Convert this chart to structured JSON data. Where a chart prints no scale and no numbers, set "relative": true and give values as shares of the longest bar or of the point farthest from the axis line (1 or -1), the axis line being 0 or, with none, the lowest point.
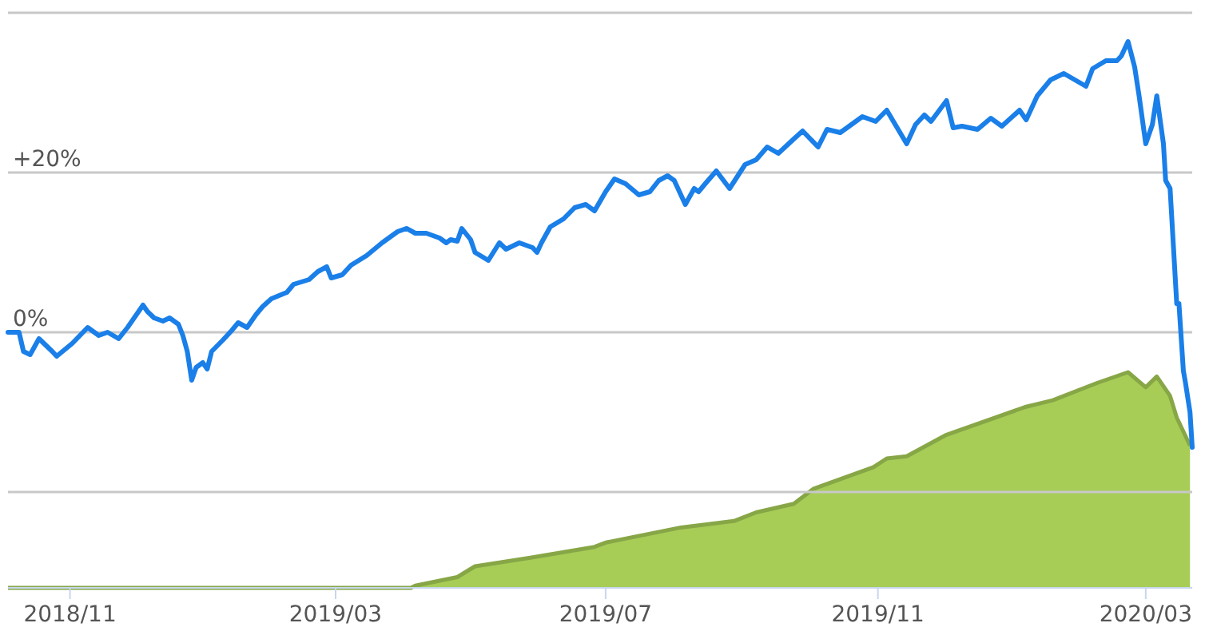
{
  "chart_data": [
    {
      "type": "line",
      "xlim": [
        "2018-10-04",
        "2020-03-22"
      ],
      "xticks": [
        {
          "value": "2018-11-01",
          "label": "2018/11"
        },
        {
          "value": "2019-03-01",
          "label": "2019/03"
        },
        {
          "value": "2019-07-01",
          "label": "2019/07"
        },
        {
          "value": "2019-11-01",
          "label": "2019/11"
        },
        {
          "value": "2020-03-01",
          "label": "2020/03"
        }
      ],
      "ylim": [
        -32,
        40
      ],
      "yticks": [
        {
          "value": -20,
          "label": null
        },
        {
          "value": 0,
          "label": "0%"
        },
        {
          "value": 20,
          "label": "+20%"
        },
        {
          "value": 40,
          "label": null
        }
      ],
      "grid": "y",
      "series": [
        {
          "color": "#1a7fe8",
          "x": [
            "2018-10-04",
            "2018-10-09",
            "2018-10-11",
            "2018-10-14",
            "2018-10-18",
            "2018-10-24",
            "2018-10-26",
            "2018-11-02",
            "2018-11-09",
            "2018-11-14",
            "2018-11-18",
            "2018-11-23",
            "2018-11-27",
            "2018-12-04",
            "2018-12-06",
            "2018-12-09",
            "2018-12-13",
            "2018-12-16",
            "2018-12-20",
            "2018-12-22",
            "2018-12-24",
            "2018-12-26",
            "2018-12-28",
            "2018-12-31",
            "2019-01-02",
            "2019-01-04",
            "2019-01-09",
            "2019-01-13",
            "2019-01-16",
            "2019-01-20",
            "2019-01-24",
            "2019-01-27",
            "2019-01-31",
            "2019-02-07",
            "2019-02-10",
            "2019-02-17",
            "2019-02-21",
            "2019-02-25",
            "2019-02-27",
            "2019-03-04",
            "2019-03-08",
            "2019-03-15",
            "2019-03-22",
            "2019-03-29",
            "2019-04-02",
            "2019-04-06",
            "2019-04-11",
            "2019-04-17",
            "2019-04-20",
            "2019-04-22",
            "2019-04-25",
            "2019-04-27",
            "2019-05-01",
            "2019-05-03",
            "2019-05-09",
            "2019-05-14",
            "2019-05-17",
            "2019-05-23",
            "2019-05-29",
            "2019-05-31",
            "2019-06-02",
            "2019-06-06",
            "2019-06-12",
            "2019-06-17",
            "2019-06-22",
            "2019-06-26",
            "2019-07-01",
            "2019-07-05",
            "2019-07-10",
            "2019-07-16",
            "2019-07-21",
            "2019-07-25",
            "2019-07-29",
            "2019-08-01",
            "2019-08-06",
            "2019-08-10",
            "2019-08-12",
            "2019-08-15",
            "2019-08-20",
            "2019-08-26",
            "2019-09-02",
            "2019-09-07",
            "2019-09-12",
            "2019-09-17",
            "2019-09-24",
            "2019-09-28",
            "2019-10-05",
            "2019-10-09",
            "2019-10-15",
            "2019-10-25",
            "2019-10-31",
            "2019-11-05",
            "2019-11-14",
            "2019-11-18",
            "2019-11-22",
            "2019-11-25",
            "2019-12-02",
            "2019-12-05",
            "2019-12-09",
            "2019-12-16",
            "2019-12-22",
            "2019-12-27",
            "2020-01-04",
            "2020-01-07",
            "2020-01-12",
            "2020-01-18",
            "2020-01-24",
            "2020-01-29",
            "2020-02-03",
            "2020-02-06",
            "2020-02-12",
            "2020-02-17",
            "2020-02-19",
            "2020-02-22",
            "2020-02-25",
            "2020-02-27",
            "2020-03-01",
            "2020-03-04",
            "2020-03-06",
            "2020-03-09",
            "2020-03-10",
            "2020-03-12",
            "2020-03-15",
            "2020-03-16",
            "2020-03-18",
            "2020-03-19",
            "2020-03-21",
            "2020-03-22"
          ],
          "values": [
            0,
            0,
            -2.4,
            -2.8,
            -0.8,
            -2.4,
            -3,
            -1.4,
            0.6,
            -0.4,
            0,
            -0.8,
            0.6,
            3.4,
            2.6,
            1.8,
            1.4,
            1.8,
            1,
            -0.4,
            -2.4,
            -6,
            -4.4,
            -3.8,
            -4.6,
            -2.4,
            -1,
            0.2,
            1.2,
            0.6,
            2.2,
            3.2,
            4.2,
            5,
            6,
            6.6,
            7.6,
            8.2,
            6.8,
            7.2,
            8.4,
            9.6,
            11.2,
            12.6,
            13,
            12.4,
            12.4,
            11.8,
            11.2,
            11.6,
            11.4,
            13,
            11.6,
            10,
            9,
            11.2,
            10.4,
            11.2,
            10.6,
            10,
            11.2,
            13.2,
            14.2,
            15.6,
            16,
            15.2,
            17.6,
            19.2,
            18.6,
            17.2,
            17.6,
            19,
            19.6,
            19,
            16,
            18,
            17.6,
            18.6,
            20.2,
            18,
            21,
            21.6,
            23.2,
            22.4,
            24.2,
            25.2,
            23.2,
            25.4,
            25,
            27,
            26.4,
            27.8,
            23.6,
            26,
            27.2,
            26.4,
            29,
            25.6,
            25.8,
            25.4,
            26.8,
            25.8,
            27.8,
            26.6,
            29.6,
            31.6,
            32.4,
            31.6,
            30.8,
            33,
            34,
            34,
            34.6,
            36.4,
            33.2,
            29.6,
            23.6,
            26,
            29.6,
            23.6,
            19,
            18,
            3.6,
            3.6,
            -4.8,
            -6.4,
            -10,
            -14.4
          ]
        }
      ]
    },
    {
      "type": "area",
      "relative": true,
      "xlim": [
        "2018-10-04",
        "2020-03-22"
      ],
      "color": "#a7cd57",
      "x": [
        "2018-10-04",
        "2019-04-04",
        "2019-04-06",
        "2019-04-25",
        "2019-05-03",
        "2019-05-28",
        "2019-06-26",
        "2019-07-01",
        "2019-08-04",
        "2019-08-28",
        "2019-09-07",
        "2019-09-24",
        "2019-10-03",
        "2019-10-30",
        "2019-11-05",
        "2019-11-14",
        "2019-12-02",
        "2020-01-07",
        "2020-01-19",
        "2020-02-08",
        "2020-02-22",
        "2020-03-01",
        "2020-03-06",
        "2020-03-12",
        "2020-03-15",
        "2020-03-21"
      ],
      "values": [
        0,
        0,
        0.01,
        0.05,
        0.1,
        0.14,
        0.19,
        0.21,
        0.28,
        0.31,
        0.35,
        0.39,
        0.46,
        0.56,
        0.6,
        0.61,
        0.71,
        0.84,
        0.87,
        0.95,
        1,
        0.93,
        0.98,
        0.89,
        0.79,
        0.66
      ]
    }
  ]
}
